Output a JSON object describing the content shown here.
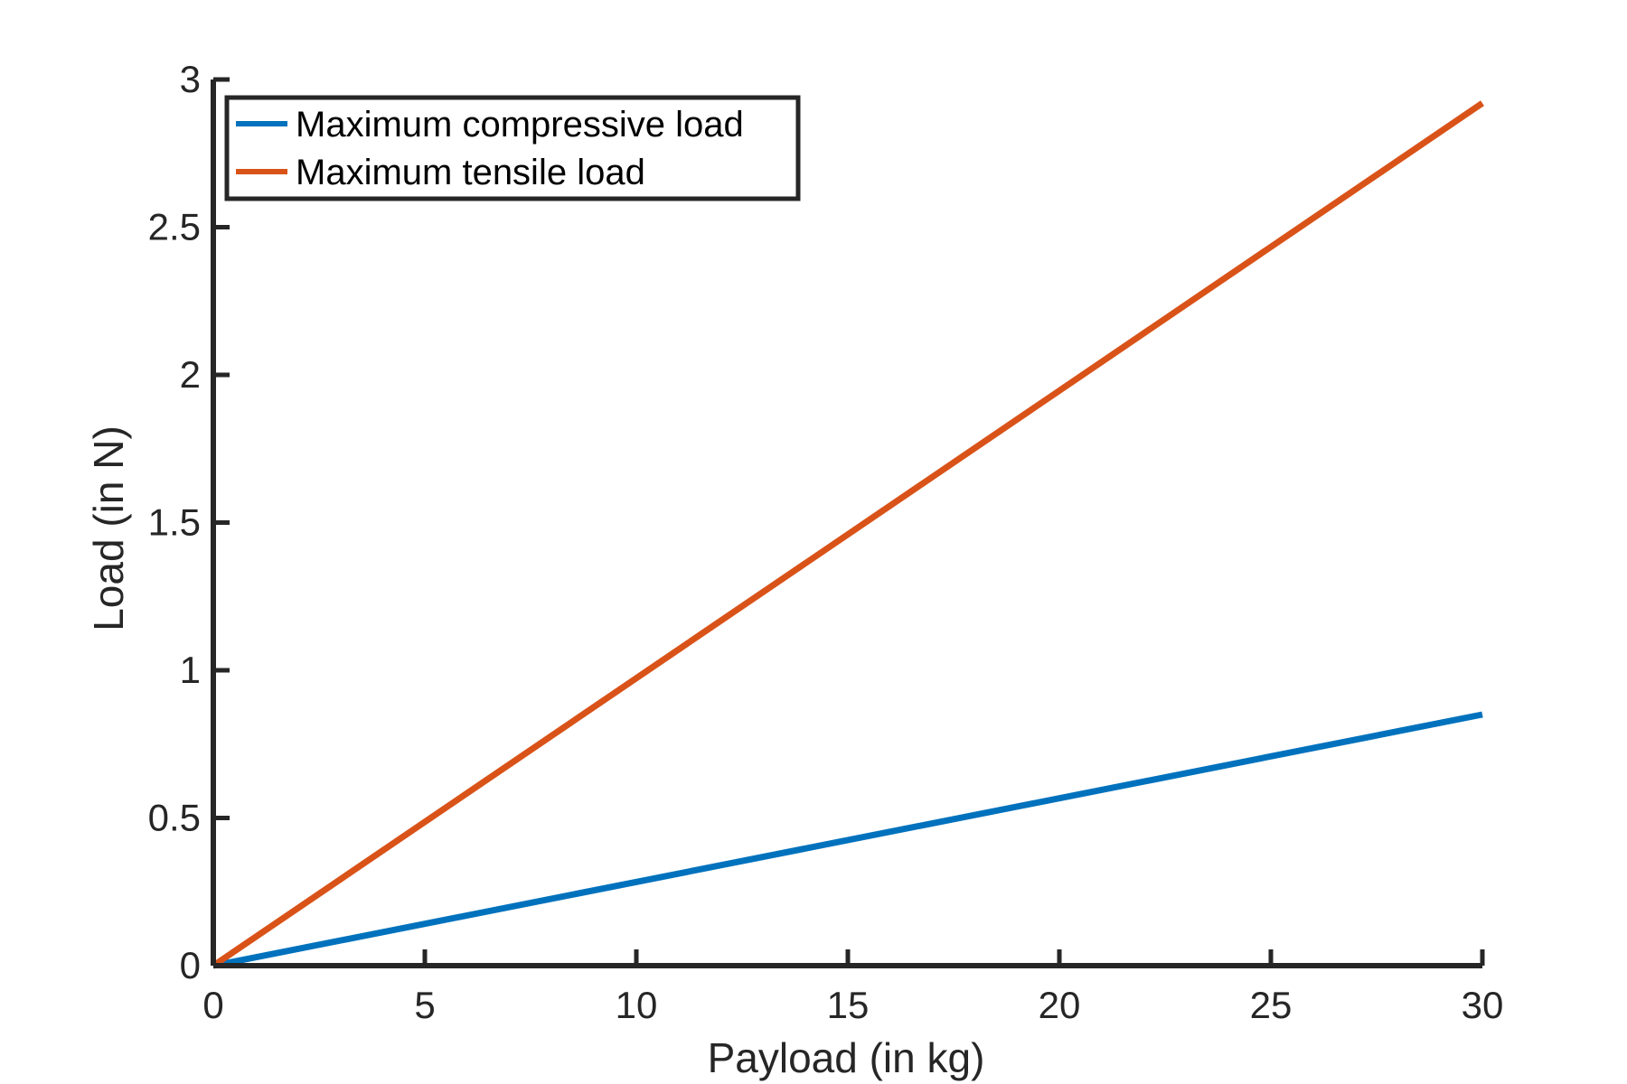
{
  "chart_data": {
    "type": "line",
    "title": "",
    "xlabel": "Payload (in kg)",
    "ylabel": "Load (in N)",
    "xlim": [
      0,
      30
    ],
    "ylim": [
      0,
      3
    ],
    "xticks": [
      0,
      5,
      10,
      15,
      20,
      25,
      30
    ],
    "yticks": [
      0,
      0.5,
      1,
      1.5,
      2,
      2.5,
      3
    ],
    "xtick_labels": [
      "0",
      "5",
      "10",
      "15",
      "20",
      "25",
      "30"
    ],
    "ytick_labels": [
      "0",
      "0.5",
      "1",
      "1.5",
      "2",
      "2.5",
      "3"
    ],
    "grid": false,
    "legend_position": "top-left",
    "series": [
      {
        "name": "Maximum compressive load",
        "color": "#0072BD",
        "x": [
          0,
          30
        ],
        "y": [
          0,
          0.85
        ]
      },
      {
        "name": "Maximum tensile load",
        "color": "#D95319",
        "x": [
          0,
          30
        ],
        "y": [
          0,
          2.92
        ]
      }
    ]
  }
}
